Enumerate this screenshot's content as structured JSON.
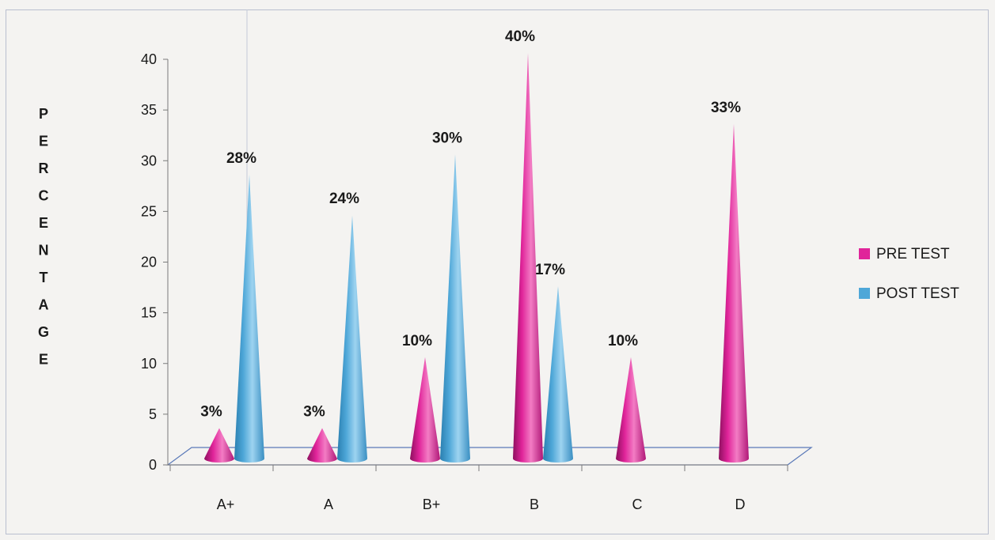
{
  "chart_data": {
    "type": "bar",
    "style": "3d-cone",
    "title": "",
    "xlabel": "",
    "ylabel": "PERCENTAGE",
    "ylim": [
      0,
      40
    ],
    "yticks": [
      0,
      5,
      10,
      15,
      20,
      25,
      30,
      35,
      40
    ],
    "categories": [
      "A+",
      "A",
      "B+",
      "B",
      "C",
      "D"
    ],
    "series": [
      {
        "name": "PRE TEST",
        "color": "#e0249a",
        "values": [
          3,
          3,
          10,
          40,
          10,
          33
        ],
        "labels": [
          "3%",
          "3%",
          "10%",
          "40%",
          "10%",
          "33%"
        ]
      },
      {
        "name": "POST TEST",
        "color": "#4ea7d8",
        "values": [
          28,
          24,
          30,
          17,
          null,
          null
        ],
        "labels": [
          "28%",
          "24%",
          "30%",
          "17%",
          "",
          ""
        ]
      }
    ],
    "legend": "right",
    "grid": false
  }
}
